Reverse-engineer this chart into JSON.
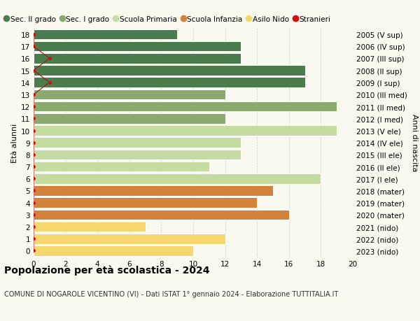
{
  "ages": [
    0,
    1,
    2,
    3,
    4,
    5,
    6,
    7,
    8,
    9,
    10,
    11,
    12,
    13,
    14,
    15,
    16,
    17,
    18
  ],
  "right_labels": [
    "2023 (nido)",
    "2022 (nido)",
    "2021 (nido)",
    "2020 (mater)",
    "2019 (mater)",
    "2018 (mater)",
    "2017 (I ele)",
    "2016 (II ele)",
    "2015 (III ele)",
    "2014 (IV ele)",
    "2013 (V ele)",
    "2012 (I med)",
    "2011 (II med)",
    "2010 (III med)",
    "2009 (I sup)",
    "2008 (II sup)",
    "2007 (III sup)",
    "2006 (IV sup)",
    "2005 (V sup)"
  ],
  "bar_values": [
    10,
    12,
    7,
    16,
    14,
    15,
    18,
    11,
    13,
    13,
    19,
    12,
    19,
    12,
    17,
    17,
    13,
    13,
    9
  ],
  "bar_colors": [
    "#f5d76e",
    "#f5d76e",
    "#f5d76e",
    "#d4813a",
    "#d4813a",
    "#d4813a",
    "#c5dca0",
    "#c5dca0",
    "#c5dca0",
    "#c5dca0",
    "#c5dca0",
    "#8aab6e",
    "#8aab6e",
    "#8aab6e",
    "#4a7c4e",
    "#4a7c4e",
    "#4a7c4e",
    "#4a7c4e",
    "#4a7c4e"
  ],
  "stranieri_x_positions": [
    0,
    0,
    0,
    0,
    0,
    0,
    0,
    0,
    0,
    0,
    0,
    0,
    0,
    0,
    1,
    0,
    1,
    0,
    0
  ],
  "legend_labels": [
    "Sec. II grado",
    "Sec. I grado",
    "Scuola Primaria",
    "Scuola Infanzia",
    "Asilo Nido",
    "Stranieri"
  ],
  "legend_colors": [
    "#4a7c4e",
    "#8aab6e",
    "#c5dca0",
    "#d4813a",
    "#f5d76e",
    "#cc1111"
  ],
  "title": "Popolazione per età scolastica - 2024",
  "subtitle": "COMUNE DI NOGAROLE VICENTINO (VI) - Dati ISTAT 1° gennaio 2024 - Elaborazione TUTTITALIA.IT",
  "ylabel_left": "Età alunni",
  "ylabel_right": "Anni di nascita",
  "xlim": [
    0,
    20
  ],
  "xticks": [
    0,
    2,
    4,
    6,
    8,
    10,
    12,
    14,
    16,
    18,
    20
  ],
  "background_color": "#f9f9f0",
  "bar_edge_color": "#ffffff",
  "grid_color": "#cccccc",
  "title_fontsize": 10,
  "subtitle_fontsize": 7,
  "tick_fontsize": 7.5,
  "legend_fontsize": 7.5,
  "ylabel_fontsize": 8
}
